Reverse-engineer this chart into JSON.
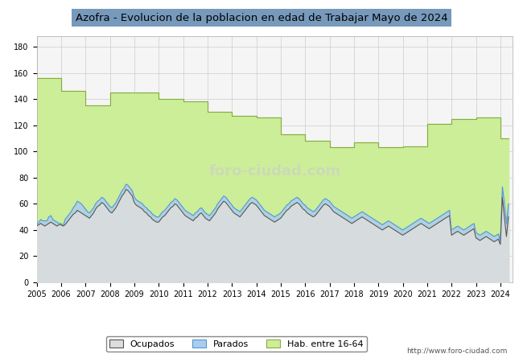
{
  "title": "Azofra - Evolucion de la poblacion en edad de Trabajar Mayo de 2024",
  "ylim": [
    0,
    188
  ],
  "yticks": [
    0,
    20,
    40,
    60,
    80,
    100,
    120,
    140,
    160,
    180
  ],
  "xticks": [
    2005,
    2006,
    2007,
    2008,
    2009,
    2010,
    2011,
    2012,
    2013,
    2014,
    2015,
    2016,
    2017,
    2018,
    2019,
    2020,
    2021,
    2022,
    2023,
    2024
  ],
  "bg_color": "#ffffff",
  "plot_bg_color": "#f5f5f5",
  "grid_color": "#cccccc",
  "url": "http://www.foro-ciudad.com",
  "hab_color": "#ccee99",
  "hab_line_color": "#88aa44",
  "parados_color": "#aaccee",
  "parados_line_color": "#5599cc",
  "ocupados_color": "#dddddd",
  "ocupados_line_color": "#555555",
  "hab16_64": [
    156,
    156,
    156,
    156,
    156,
    156,
    156,
    156,
    156,
    156,
    156,
    156,
    146,
    146,
    146,
    146,
    146,
    146,
    146,
    146,
    146,
    146,
    146,
    146,
    135,
    135,
    135,
    135,
    135,
    135,
    135,
    135,
    135,
    135,
    135,
    135,
    145,
    145,
    145,
    145,
    145,
    145,
    145,
    145,
    145,
    145,
    145,
    145,
    145,
    145,
    145,
    145,
    145,
    145,
    145,
    145,
    145,
    145,
    145,
    145,
    140,
    140,
    140,
    140,
    140,
    140,
    140,
    140,
    140,
    140,
    140,
    140,
    138,
    138,
    138,
    138,
    138,
    138,
    138,
    138,
    138,
    138,
    138,
    138,
    130,
    130,
    130,
    130,
    130,
    130,
    130,
    130,
    130,
    130,
    130,
    130,
    127,
    127,
    127,
    127,
    127,
    127,
    127,
    127,
    127,
    127,
    127,
    127,
    126,
    126,
    126,
    126,
    126,
    126,
    126,
    126,
    126,
    126,
    126,
    126,
    113,
    113,
    113,
    113,
    113,
    113,
    113,
    113,
    113,
    113,
    113,
    113,
    108,
    108,
    108,
    108,
    108,
    108,
    108,
    108,
    108,
    108,
    108,
    108,
    103,
    103,
    103,
    103,
    103,
    103,
    103,
    103,
    103,
    103,
    103,
    103,
    107,
    107,
    107,
    107,
    107,
    107,
    107,
    107,
    107,
    107,
    107,
    107,
    103,
    103,
    103,
    103,
    103,
    103,
    103,
    103,
    103,
    103,
    103,
    103,
    104,
    104,
    104,
    104,
    104,
    104,
    104,
    104,
    104,
    104,
    104,
    104,
    121,
    121,
    121,
    121,
    121,
    121,
    121,
    121,
    121,
    121,
    121,
    121,
    125,
    125,
    125,
    125,
    125,
    125,
    125,
    125,
    125,
    125,
    125,
    125,
    126,
    126,
    126,
    126,
    126,
    126,
    126,
    126,
    126,
    126,
    126,
    126,
    110,
    110,
    110,
    110,
    110
  ],
  "parados": [
    44,
    46,
    48,
    47,
    47,
    47,
    50,
    51,
    48,
    47,
    46,
    45,
    45,
    43,
    48,
    50,
    52,
    54,
    57,
    59,
    62,
    61,
    60,
    58,
    56,
    54,
    53,
    55,
    57,
    60,
    62,
    63,
    65,
    64,
    62,
    60,
    58,
    57,
    59,
    61,
    64,
    67,
    70,
    72,
    75,
    74,
    72,
    70,
    65,
    63,
    62,
    61,
    60,
    58,
    57,
    55,
    54,
    52,
    51,
    50,
    50,
    52,
    54,
    55,
    57,
    59,
    61,
    62,
    64,
    63,
    61,
    59,
    57,
    55,
    54,
    53,
    52,
    51,
    53,
    54,
    56,
    57,
    55,
    53,
    52,
    51,
    53,
    55,
    57,
    60,
    62,
    64,
    66,
    65,
    63,
    61,
    59,
    57,
    56,
    55,
    54,
    56,
    58,
    60,
    62,
    64,
    65,
    64,
    63,
    61,
    59,
    57,
    55,
    54,
    53,
    52,
    51,
    50,
    51,
    52,
    53,
    55,
    57,
    59,
    60,
    62,
    63,
    64,
    65,
    64,
    62,
    60,
    59,
    57,
    56,
    55,
    54,
    55,
    57,
    59,
    61,
    63,
    64,
    63,
    62,
    60,
    58,
    57,
    56,
    55,
    54,
    53,
    52,
    51,
    50,
    49,
    50,
    51,
    52,
    53,
    54,
    53,
    52,
    51,
    50,
    49,
    48,
    47,
    46,
    45,
    44,
    45,
    46,
    47,
    46,
    45,
    44,
    43,
    42,
    41,
    40,
    41,
    42,
    43,
    44,
    45,
    46,
    47,
    48,
    49,
    48,
    47,
    46,
    45,
    46,
    47,
    48,
    49,
    50,
    51,
    52,
    53,
    54,
    55,
    40,
    41,
    42,
    43,
    42,
    41,
    40,
    41,
    42,
    43,
    44,
    45,
    38,
    37,
    36,
    37,
    38,
    39,
    38,
    37,
    36,
    35,
    36,
    37,
    31,
    73,
    60,
    45,
    60
  ],
  "ocupados": [
    43,
    44,
    45,
    44,
    43,
    44,
    45,
    46,
    45,
    44,
    43,
    44,
    44,
    43,
    44,
    46,
    48,
    50,
    52,
    53,
    55,
    54,
    53,
    52,
    51,
    50,
    49,
    51,
    53,
    56,
    58,
    59,
    61,
    60,
    58,
    56,
    54,
    53,
    55,
    57,
    60,
    63,
    66,
    68,
    71,
    70,
    68,
    66,
    61,
    59,
    58,
    57,
    56,
    54,
    53,
    51,
    50,
    48,
    47,
    46,
    46,
    48,
    50,
    51,
    53,
    55,
    57,
    58,
    60,
    59,
    57,
    55,
    53,
    51,
    50,
    49,
    48,
    47,
    49,
    50,
    52,
    53,
    51,
    49,
    48,
    47,
    49,
    51,
    53,
    56,
    58,
    60,
    62,
    61,
    59,
    57,
    55,
    53,
    52,
    51,
    50,
    52,
    54,
    56,
    58,
    60,
    61,
    60,
    59,
    57,
    55,
    53,
    51,
    50,
    49,
    48,
    47,
    46,
    47,
    48,
    49,
    51,
    53,
    55,
    56,
    58,
    59,
    60,
    61,
    60,
    58,
    56,
    55,
    53,
    52,
    51,
    50,
    51,
    53,
    55,
    57,
    59,
    60,
    59,
    58,
    56,
    54,
    53,
    52,
    51,
    50,
    49,
    48,
    47,
    46,
    45,
    46,
    47,
    48,
    49,
    50,
    49,
    48,
    47,
    46,
    45,
    44,
    43,
    42,
    41,
    40,
    41,
    42,
    43,
    42,
    41,
    40,
    39,
    38,
    37,
    36,
    37,
    38,
    39,
    40,
    41,
    42,
    43,
    44,
    45,
    44,
    43,
    42,
    41,
    42,
    43,
    44,
    45,
    46,
    47,
    48,
    49,
    50,
    51,
    36,
    37,
    38,
    39,
    38,
    37,
    36,
    37,
    38,
    39,
    40,
    41,
    34,
    33,
    32,
    33,
    34,
    35,
    34,
    33,
    32,
    31,
    32,
    33,
    29,
    65,
    50,
    35,
    50
  ],
  "legend_labels": [
    "Ocupados",
    "Parados",
    "Hab. entre 16-64"
  ],
  "legend_colors_fill": [
    "#dddddd",
    "#aaccee",
    "#ccee99"
  ],
  "legend_colors_edge": [
    "#555555",
    "#5599cc",
    "#88aa44"
  ]
}
